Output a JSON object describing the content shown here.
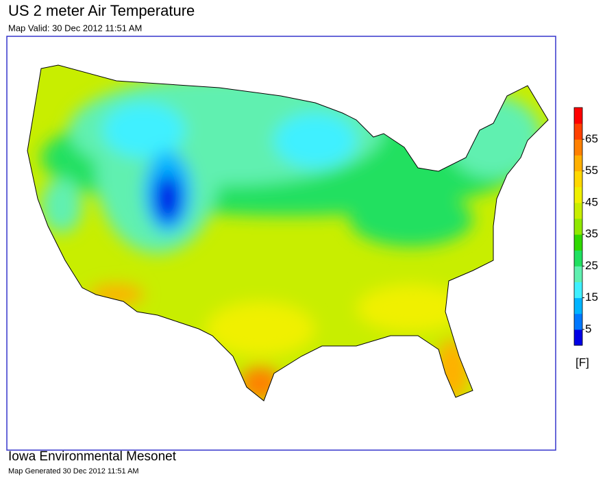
{
  "header": {
    "title": "US 2 meter Air Temperature",
    "subtitle": "Map Valid: 30 Dec 2012 11:51 AM"
  },
  "colorbar": {
    "lim": [
      0,
      75
    ],
    "ticks": [
      5,
      15,
      25,
      35,
      45,
      55,
      65
    ],
    "unit": "[F]",
    "colors": [
      "#0000e6",
      "#0078ff",
      "#00b4ff",
      "#40f0ff",
      "#60f0b0",
      "#20e060",
      "#30d800",
      "#90e800",
      "#c8ee00",
      "#f0f000",
      "#ffd800",
      "#ffb000",
      "#ff8000",
      "#ff4000",
      "#ff0000"
    ]
  },
  "footer": {
    "title": "Iowa Environmental Mesonet",
    "subtitle": "Map Generated 30 Dec 2012 11:51 AM"
  }
}
